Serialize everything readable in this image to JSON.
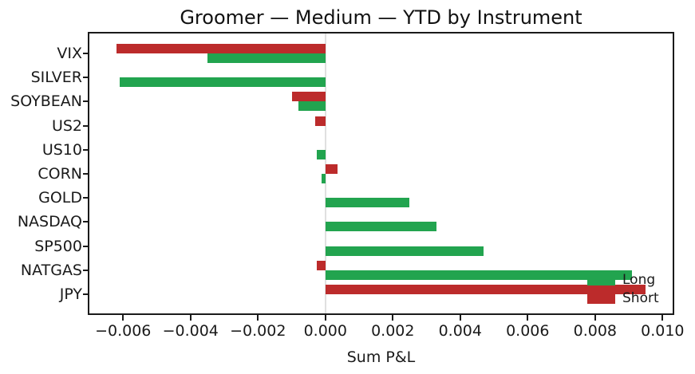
{
  "chart_data": {
    "type": "bar",
    "orientation": "horizontal",
    "title": "Groomer — Medium — YTD by Instrument",
    "xlabel": "Sum P&L",
    "ylabel": "",
    "categories": [
      "VIX",
      "SILVER",
      "SOYBEAN",
      "US2",
      "US10",
      "CORN",
      "GOLD",
      "NASDAQ",
      "SP500",
      "NATGAS",
      "JPY"
    ],
    "series": [
      {
        "name": "Long",
        "color": "#22a44f",
        "values": [
          -0.0035,
          -0.0061,
          -0.0008,
          null,
          -0.00025,
          -0.00012,
          0.0025,
          0.0033,
          0.0047,
          0.0091,
          null
        ]
      },
      {
        "name": "Short",
        "color": "#bc2b2b",
        "values": [
          -0.0062,
          null,
          -0.001,
          -0.0003,
          null,
          0.00035,
          null,
          null,
          null,
          -0.00025,
          0.0095
        ]
      }
    ],
    "x_ticks": [
      -0.006,
      -0.004,
      -0.002,
      0,
      0.002,
      0.004,
      0.006,
      0.008,
      0.01
    ],
    "x_tick_labels": [
      "−0.006",
      "−0.004",
      "−0.002",
      "0.000",
      "0.002",
      "0.004",
      "0.006",
      "0.008",
      "0.010"
    ],
    "xlim": [
      -0.007,
      0.0103
    ],
    "grid": false,
    "zero_line": true,
    "legend": {
      "position": "lower right",
      "entries": [
        "Long",
        "Short"
      ]
    },
    "colors": {
      "long": "#22a44f",
      "short": "#bc2b2b",
      "zero_line": "#e0e0e0",
      "spine": "#1a1a1a",
      "text": "#1a1a1a"
    }
  }
}
